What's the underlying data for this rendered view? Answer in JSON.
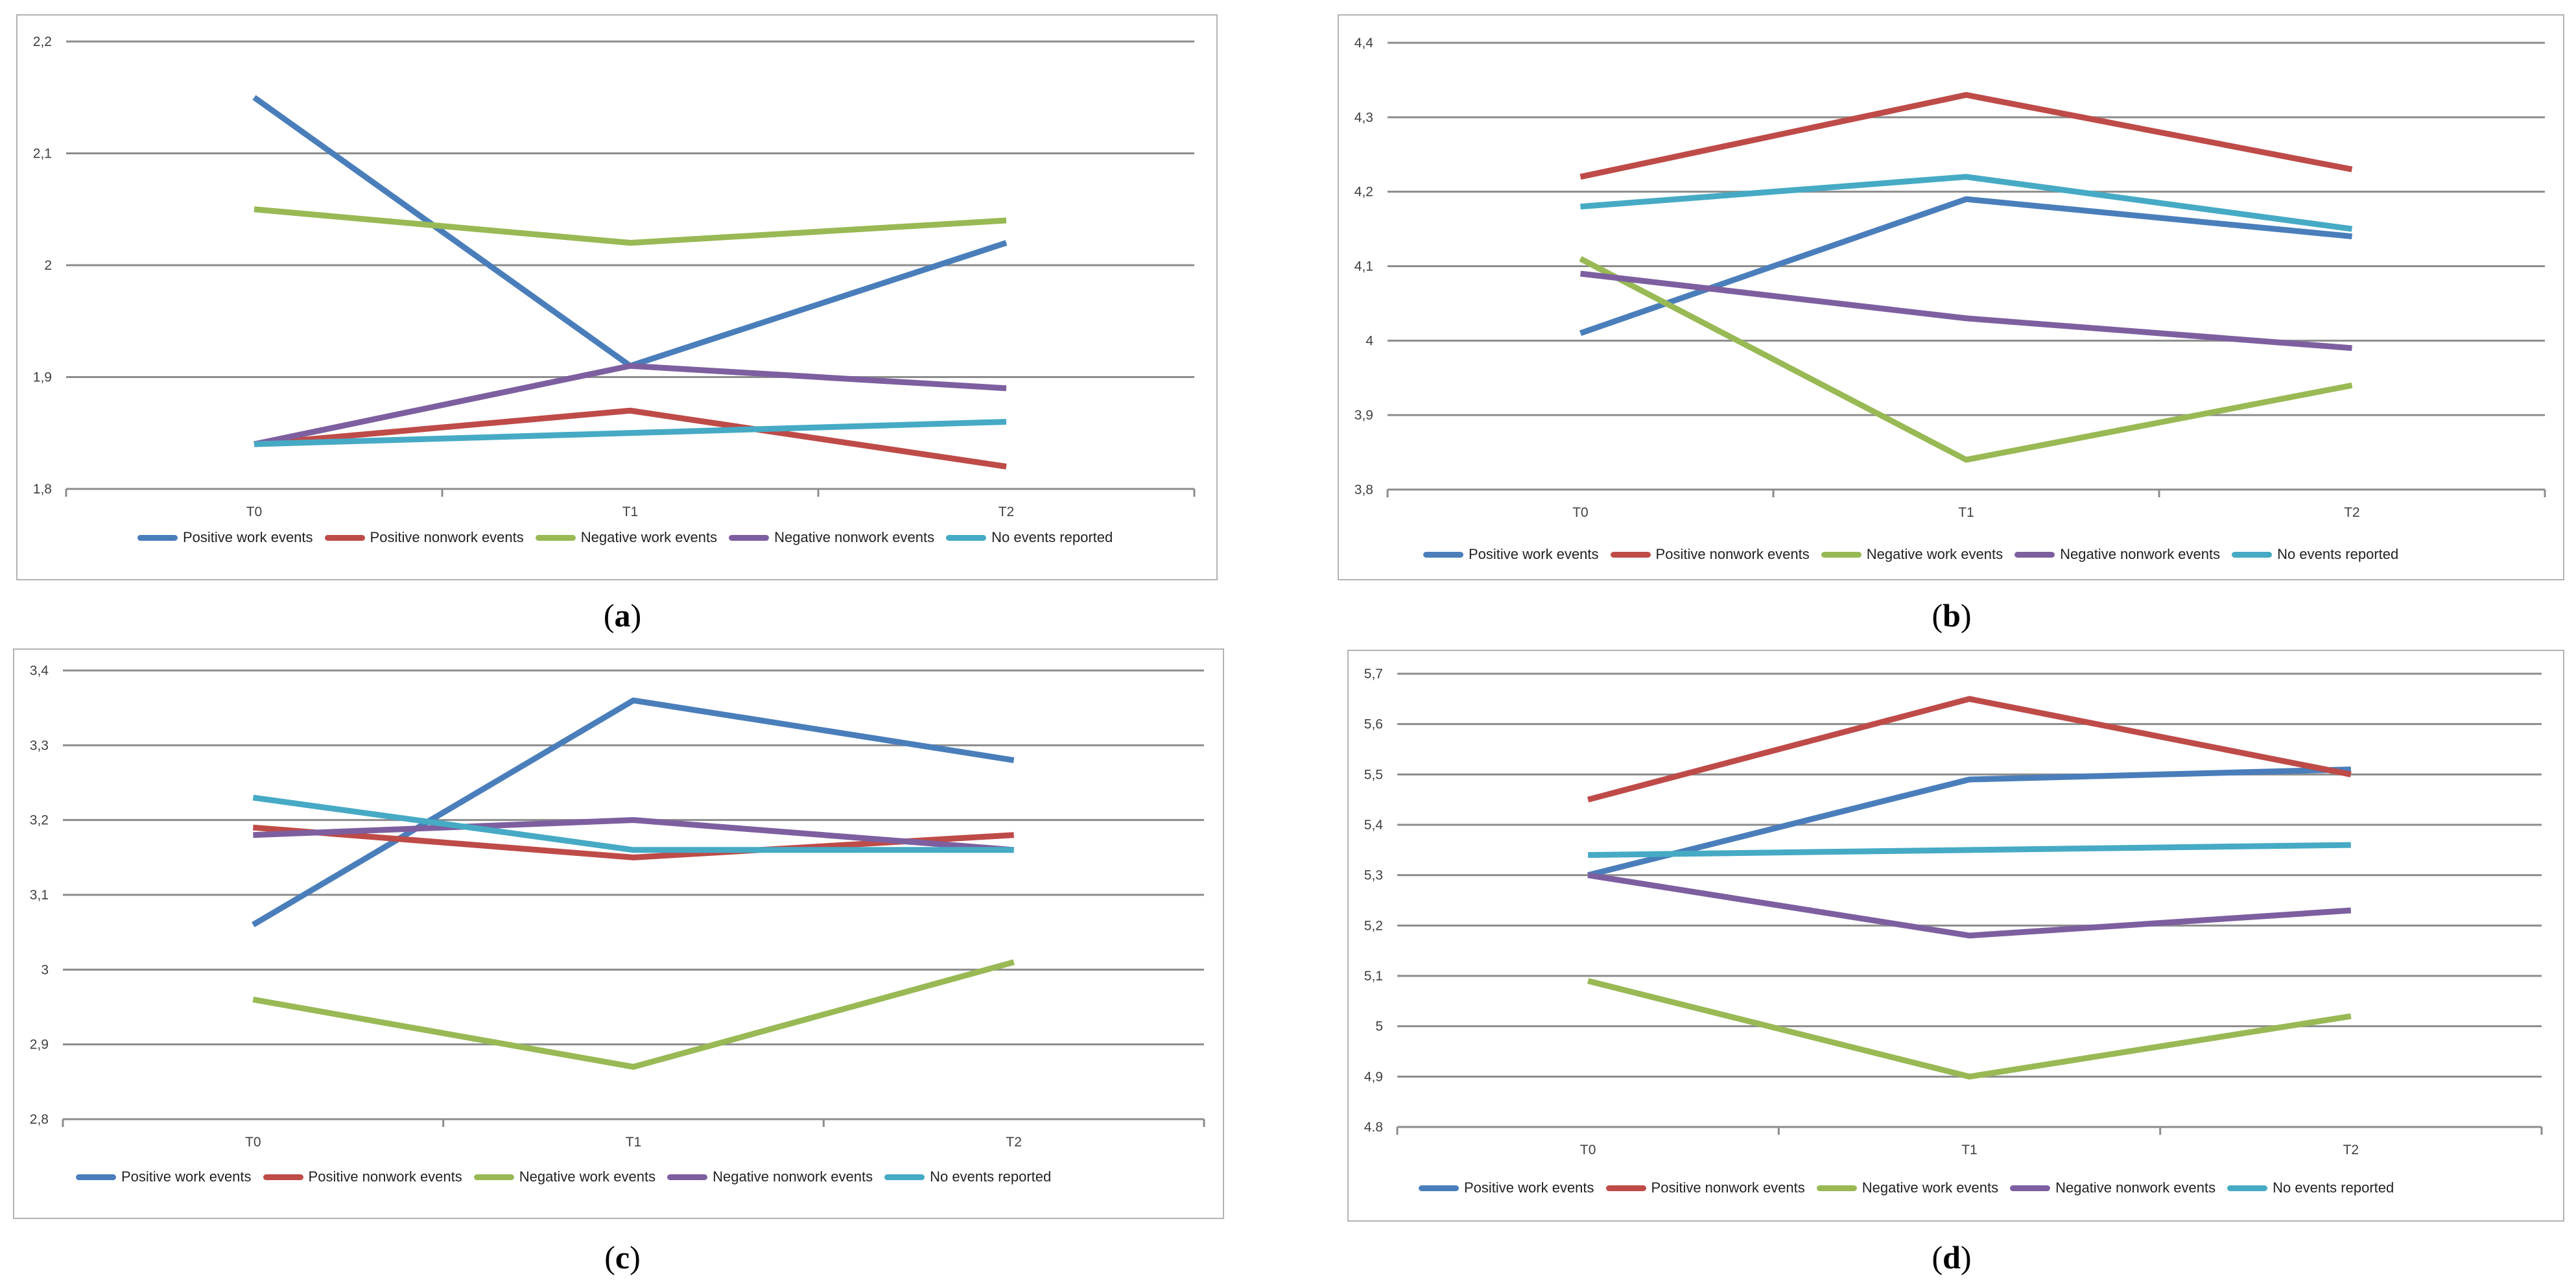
{
  "colors": {
    "positive_work": "#4a7ebb",
    "positive_nonwork": "#be4b48",
    "negative_work": "#98b954",
    "negative_nonwork": "#7d5fa0",
    "no_events": "#46aac5"
  },
  "chart_data": [
    {
      "type": "line",
      "caption": "a",
      "categories": [
        "T0",
        "T1",
        "T2"
      ],
      "ylim": [
        1.8,
        2.2
      ],
      "yticks": [
        "1,8",
        "1,9",
        "2",
        "2,1",
        "2,2"
      ],
      "ytick_values": [
        1.8,
        1.9,
        2.0,
        2.1,
        2.2
      ],
      "series": [
        {
          "name": "Positive work events",
          "color_key": "positive_work",
          "values": [
            2.15,
            1.91,
            2.02
          ]
        },
        {
          "name": "Positive nonwork events",
          "color_key": "positive_nonwork",
          "values": [
            1.84,
            1.87,
            1.82
          ]
        },
        {
          "name": "Negative work events",
          "color_key": "negative_work",
          "values": [
            2.05,
            2.02,
            2.04
          ]
        },
        {
          "name": "Negative nonwork events",
          "color_key": "negative_nonwork",
          "values": [
            1.84,
            1.91,
            1.89
          ]
        },
        {
          "name": "No events reported",
          "color_key": "no_events",
          "values": [
            1.84,
            1.85,
            1.86
          ]
        }
      ]
    },
    {
      "type": "line",
      "caption": "b",
      "categories": [
        "T0",
        "T1",
        "T2"
      ],
      "ylim": [
        3.8,
        4.4
      ],
      "yticks": [
        "3,8",
        "3,9",
        "4",
        "4,1",
        "4,2",
        "4,3",
        "4,4"
      ],
      "ytick_values": [
        3.8,
        3.9,
        4.0,
        4.1,
        4.2,
        4.3,
        4.4
      ],
      "series": [
        {
          "name": "Positive work events",
          "color_key": "positive_work",
          "values": [
            4.01,
            4.19,
            4.14
          ]
        },
        {
          "name": "Positive nonwork events",
          "color_key": "positive_nonwork",
          "values": [
            4.22,
            4.33,
            4.23
          ]
        },
        {
          "name": "Negative work events",
          "color_key": "negative_work",
          "values": [
            4.11,
            3.84,
            3.94
          ]
        },
        {
          "name": "Negative nonwork events",
          "color_key": "negative_nonwork",
          "values": [
            4.09,
            4.03,
            3.99
          ]
        },
        {
          "name": "No events reported",
          "color_key": "no_events",
          "values": [
            4.18,
            4.22,
            4.15
          ]
        }
      ]
    },
    {
      "type": "line",
      "caption": "c",
      "categories": [
        "T0",
        "T1",
        "T2"
      ],
      "ylim": [
        2.8,
        3.4
      ],
      "yticks": [
        "2,8",
        "2,9",
        "3",
        "3,1",
        "3,2",
        "3,3",
        "3,4"
      ],
      "ytick_values": [
        2.8,
        2.9,
        3.0,
        3.1,
        3.2,
        3.3,
        3.4
      ],
      "series": [
        {
          "name": "Positive work events",
          "color_key": "positive_work",
          "values": [
            3.06,
            3.36,
            3.28
          ]
        },
        {
          "name": "Positive nonwork events",
          "color_key": "positive_nonwork",
          "values": [
            3.19,
            3.15,
            3.18
          ]
        },
        {
          "name": "Negative work events",
          "color_key": "negative_work",
          "values": [
            2.96,
            2.87,
            3.01
          ]
        },
        {
          "name": "Negative nonwork events",
          "color_key": "negative_nonwork",
          "values": [
            3.18,
            3.2,
            3.16
          ]
        },
        {
          "name": "No events reported",
          "color_key": "no_events",
          "values": [
            3.23,
            3.16,
            3.16
          ]
        }
      ]
    },
    {
      "type": "line",
      "caption": "d",
      "categories": [
        "T0",
        "T1",
        "T2"
      ],
      "ylim": [
        4.8,
        5.7
      ],
      "yticks": [
        "4.8",
        "4,9",
        "5",
        "5,1",
        "5,2",
        "5,3",
        "5,4",
        "5,5",
        "5,6",
        "5,7"
      ],
      "ytick_values": [
        4.8,
        4.9,
        5.0,
        5.1,
        5.2,
        5.3,
        5.4,
        5.5,
        5.6,
        5.7
      ],
      "series": [
        {
          "name": "Positive work events",
          "color_key": "positive_work",
          "values": [
            5.3,
            5.49,
            5.51
          ]
        },
        {
          "name": "Positive nonwork events",
          "color_key": "positive_nonwork",
          "values": [
            5.45,
            5.65,
            5.5
          ]
        },
        {
          "name": "Negative work events",
          "color_key": "negative_work",
          "values": [
            5.09,
            4.9,
            5.02
          ]
        },
        {
          "name": "Negative nonwork events",
          "color_key": "negative_nonwork",
          "values": [
            5.3,
            5.18,
            5.23
          ]
        },
        {
          "name": "No events reported",
          "color_key": "no_events",
          "values": [
            5.34,
            5.35,
            5.36
          ]
        }
      ]
    }
  ]
}
